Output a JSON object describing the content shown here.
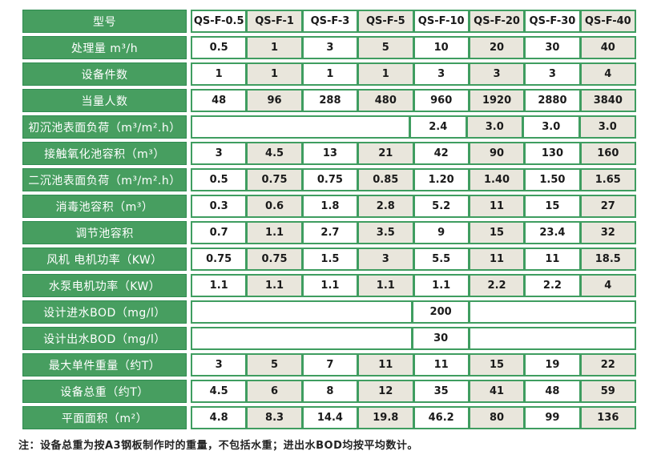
{
  "colors": {
    "green_fill": "#479E60",
    "green_dark_border": "#2E8B50",
    "cell_border_green": "#3F9D60",
    "beige_cell": "#E9E6DC",
    "text_dark": "#1A1A1A"
  },
  "note": "注：设备总重为按A3钢板制作时的重量，不包括水重；进出水BOD均按平均数计。",
  "table": {
    "rows": [
      {
        "label": "型号",
        "cells": [
          {
            "text": "QS-F-0.5"
          },
          {
            "text": "QS-F-1"
          },
          {
            "text": "QS-F-3"
          },
          {
            "text": "QS-F-5"
          },
          {
            "text": "QS-F-10"
          },
          {
            "text": "QS-F-20"
          },
          {
            "text": "QS-F-30"
          },
          {
            "text": "QS-F-40"
          }
        ]
      },
      {
        "label": "处理量 m³/h",
        "cells": [
          {
            "text": "0.5"
          },
          {
            "text": "1"
          },
          {
            "text": "3"
          },
          {
            "text": "5"
          },
          {
            "text": "10"
          },
          {
            "text": "20"
          },
          {
            "text": "30"
          },
          {
            "text": "40"
          }
        ]
      },
      {
        "label": "设备件数",
        "cells": [
          {
            "text": "1"
          },
          {
            "text": "1"
          },
          {
            "text": "1"
          },
          {
            "text": "1"
          },
          {
            "text": "3"
          },
          {
            "text": "3"
          },
          {
            "text": "3"
          },
          {
            "text": "4"
          }
        ]
      },
      {
        "label": "当量人数",
        "cells": [
          {
            "text": "48"
          },
          {
            "text": "96"
          },
          {
            "text": "288"
          },
          {
            "text": "480"
          },
          {
            "text": "960"
          },
          {
            "text": "1920"
          },
          {
            "text": "2880"
          },
          {
            "text": "3840"
          }
        ]
      },
      {
        "label": "初沉池表面负荷（m³/m².h）",
        "cells": [
          {
            "text": "",
            "span": 4
          },
          {
            "text": "2.4"
          },
          {
            "text": "3.0"
          },
          {
            "text": "3.0"
          },
          {
            "text": "3.0"
          }
        ]
      },
      {
        "label": "接触氧化池容积（m³）",
        "cells": [
          {
            "text": "3"
          },
          {
            "text": "4.5"
          },
          {
            "text": "13"
          },
          {
            "text": "21"
          },
          {
            "text": "42"
          },
          {
            "text": "90"
          },
          {
            "text": "130"
          },
          {
            "text": "160"
          }
        ]
      },
      {
        "label": "二沉池表面负荷（m³/m².h）",
        "cells": [
          {
            "text": "0.5"
          },
          {
            "text": "0.75"
          },
          {
            "text": "0.75"
          },
          {
            "text": "0.85"
          },
          {
            "text": "1.20"
          },
          {
            "text": "1.40"
          },
          {
            "text": "1.50"
          },
          {
            "text": "1.65"
          }
        ]
      },
      {
        "label": "消毒池容积（m³）",
        "cells": [
          {
            "text": "0.3"
          },
          {
            "text": "0.6"
          },
          {
            "text": "1.8"
          },
          {
            "text": "2.8"
          },
          {
            "text": "5.2"
          },
          {
            "text": "11"
          },
          {
            "text": "15"
          },
          {
            "text": "27"
          }
        ]
      },
      {
        "label": "调节池容积",
        "cells": [
          {
            "text": "0.7"
          },
          {
            "text": "1.1"
          },
          {
            "text": "2.7"
          },
          {
            "text": "3.5"
          },
          {
            "text": "9"
          },
          {
            "text": "15"
          },
          {
            "text": "23.4"
          },
          {
            "text": "32"
          }
        ]
      },
      {
        "label": "风机 电机功率（KW）",
        "cells": [
          {
            "text": "0.75"
          },
          {
            "text": "0.75"
          },
          {
            "text": "1.5"
          },
          {
            "text": "3"
          },
          {
            "text": "5.5"
          },
          {
            "text": "11"
          },
          {
            "text": "11"
          },
          {
            "text": "18.5"
          }
        ]
      },
      {
        "label": "水泵电机功率（KW）",
        "cells": [
          {
            "text": "1.1"
          },
          {
            "text": "1.1"
          },
          {
            "text": "1.1"
          },
          {
            "text": "1.1"
          },
          {
            "text": "1.1"
          },
          {
            "text": "2.2"
          },
          {
            "text": "2.2"
          },
          {
            "text": "4"
          }
        ]
      },
      {
        "label": "设计进水BOD（mg/l）",
        "cells": [
          {
            "text": "",
            "span": 4
          },
          {
            "text": "200"
          },
          {
            "text": "",
            "span": 3
          }
        ]
      },
      {
        "label": "设计出水BOD（mg/l）",
        "cells": [
          {
            "text": "",
            "span": 4
          },
          {
            "text": "30"
          },
          {
            "text": "",
            "span": 3
          }
        ]
      },
      {
        "label": "最大单件重量（约T）",
        "cells": [
          {
            "text": "3"
          },
          {
            "text": "5"
          },
          {
            "text": "7"
          },
          {
            "text": "11"
          },
          {
            "text": "11"
          },
          {
            "text": "15"
          },
          {
            "text": "19"
          },
          {
            "text": "22"
          }
        ]
      },
      {
        "label": "设备总重（约T）",
        "cells": [
          {
            "text": "4.5"
          },
          {
            "text": "6"
          },
          {
            "text": "8"
          },
          {
            "text": "12"
          },
          {
            "text": "35"
          },
          {
            "text": "41"
          },
          {
            "text": "48"
          },
          {
            "text": "59"
          }
        ]
      },
      {
        "label": "平面面积（m²）",
        "cells": [
          {
            "text": "4.8"
          },
          {
            "text": "8.3"
          },
          {
            "text": "14.4"
          },
          {
            "text": "19.8"
          },
          {
            "text": "46.2"
          },
          {
            "text": "80"
          },
          {
            "text": "99"
          },
          {
            "text": "136"
          }
        ]
      }
    ]
  }
}
